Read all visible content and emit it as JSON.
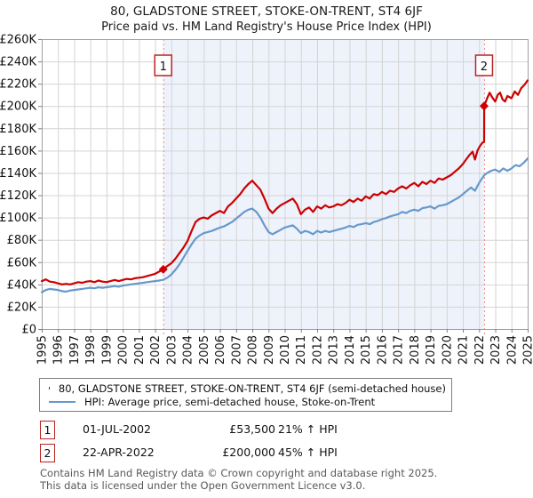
{
  "title": {
    "line1": "80, GLADSTONE STREET, STOKE-ON-TRENT, ST4 6JF",
    "line2": "Price paid vs. HM Land Registry's House Price Index (HPI)"
  },
  "legend": {
    "items": [
      {
        "label": "80, GLADSTONE STREET, STOKE-ON-TRENT, ST4 6JF (semi-detached house)",
        "color": "#cc0000"
      },
      {
        "label": "HPI: Average price, semi-detached house, Stoke-on-Trent",
        "color": "#6699cc"
      }
    ]
  },
  "annotations": [
    {
      "num": "1",
      "date": "01-JUL-2002",
      "price": "£53,500",
      "pct": "21% ↑ HPI"
    },
    {
      "num": "2",
      "date": "22-APR-2022",
      "price": "£200,000",
      "pct": "45% ↑ HPI"
    }
  ],
  "footer": {
    "line1": "Contains HM Land Registry data © Crown copyright and database right 2025.",
    "line2": "This data is licensed under the Open Government Licence v3.0."
  },
  "chart_data": {
    "type": "line",
    "title": "80, GLADSTONE STREET, STOKE-ON-TRENT, ST4 6JF — Price paid vs. HPI",
    "xlim": [
      1995,
      2025
    ],
    "ylim": [
      0,
      260000
    ],
    "grid": true,
    "colors": {
      "grid": "#d4d4d4",
      "border": "#a0a0a0",
      "shade": "#eef2fb",
      "dashed_line": "#ee8888",
      "marker_box_border": "#bb2222",
      "series_property": "#cc0000",
      "series_hpi": "#6699cc"
    },
    "y_ticks": [
      {
        "label": "£0",
        "value": 0
      },
      {
        "label": "£20K",
        "value": 20000
      },
      {
        "label": "£40K",
        "value": 40000
      },
      {
        "label": "£60K",
        "value": 60000
      },
      {
        "label": "£80K",
        "value": 80000
      },
      {
        "label": "£100K",
        "value": 100000
      },
      {
        "label": "£120K",
        "value": 120000
      },
      {
        "label": "£140K",
        "value": 140000
      },
      {
        "label": "£160K",
        "value": 160000
      },
      {
        "label": "£180K",
        "value": 180000
      },
      {
        "label": "£200K",
        "value": 200000
      },
      {
        "label": "£220K",
        "value": 220000
      },
      {
        "label": "£240K",
        "value": 240000
      },
      {
        "label": "£260K",
        "value": 260000
      }
    ],
    "x_ticks": [
      1995,
      1996,
      1997,
      1998,
      1999,
      2000,
      2001,
      2002,
      2003,
      2004,
      2005,
      2006,
      2007,
      2008,
      2009,
      2010,
      2011,
      2012,
      2013,
      2014,
      2015,
      2016,
      2017,
      2018,
      2019,
      2020,
      2021,
      2022,
      2023,
      2024,
      2025
    ],
    "shaded_region": {
      "from": 2002.5,
      "to": 2022.31
    },
    "markers": [
      {
        "label": "1",
        "x": 2002.5,
        "value": 53500
      },
      {
        "label": "2",
        "x": 2022.31,
        "value": 200000
      }
    ],
    "series": [
      {
        "name": "80, GLADSTONE STREET, STOKE-ON-TRENT, ST4 6JF (semi-detached house)",
        "color": "#cc0000",
        "width": 2.2,
        "points": [
          [
            1995.0,
            43000
          ],
          [
            1995.25,
            44500
          ],
          [
            1995.5,
            42500
          ],
          [
            1995.75,
            42000
          ],
          [
            1996.0,
            41000
          ],
          [
            1996.25,
            40000
          ],
          [
            1996.5,
            40500
          ],
          [
            1996.75,
            40000
          ],
          [
            1997.0,
            41000
          ],
          [
            1997.25,
            42000
          ],
          [
            1997.5,
            41500
          ],
          [
            1997.75,
            42500
          ],
          [
            1998.0,
            43000
          ],
          [
            1998.25,
            42000
          ],
          [
            1998.5,
            43500
          ],
          [
            1998.75,
            42500
          ],
          [
            1999.0,
            42000
          ],
          [
            1999.25,
            43000
          ],
          [
            1999.5,
            44000
          ],
          [
            1999.75,
            43000
          ],
          [
            2000.0,
            44000
          ],
          [
            2000.25,
            45000
          ],
          [
            2000.5,
            44500
          ],
          [
            2000.75,
            45500
          ],
          [
            2001.0,
            46000
          ],
          [
            2001.25,
            46500
          ],
          [
            2001.5,
            47500
          ],
          [
            2001.75,
            48500
          ],
          [
            2002.0,
            49500
          ],
          [
            2002.25,
            51500
          ],
          [
            2002.5,
            53500
          ],
          [
            2002.75,
            56500
          ],
          [
            2003.0,
            59000
          ],
          [
            2003.25,
            63000
          ],
          [
            2003.5,
            68000
          ],
          [
            2003.75,
            73000
          ],
          [
            2004.0,
            79000
          ],
          [
            2004.25,
            88000
          ],
          [
            2004.5,
            96000
          ],
          [
            2004.75,
            99000
          ],
          [
            2005.0,
            100000
          ],
          [
            2005.25,
            99000
          ],
          [
            2005.5,
            102000
          ],
          [
            2005.75,
            104000
          ],
          [
            2006.0,
            106000
          ],
          [
            2006.25,
            104000
          ],
          [
            2006.5,
            110000
          ],
          [
            2006.75,
            113000
          ],
          [
            2007.0,
            117000
          ],
          [
            2007.25,
            121000
          ],
          [
            2007.5,
            126000
          ],
          [
            2007.75,
            130000
          ],
          [
            2008.0,
            133000
          ],
          [
            2008.25,
            129000
          ],
          [
            2008.5,
            125000
          ],
          [
            2008.75,
            117000
          ],
          [
            2009.0,
            108000
          ],
          [
            2009.25,
            104000
          ],
          [
            2009.5,
            108000
          ],
          [
            2009.75,
            111000
          ],
          [
            2010.0,
            113000
          ],
          [
            2010.25,
            115000
          ],
          [
            2010.5,
            117000
          ],
          [
            2010.75,
            112000
          ],
          [
            2011.0,
            103000
          ],
          [
            2011.25,
            107000
          ],
          [
            2011.5,
            109000
          ],
          [
            2011.75,
            105000
          ],
          [
            2012.0,
            110000
          ],
          [
            2012.25,
            108000
          ],
          [
            2012.5,
            111000
          ],
          [
            2012.75,
            109000
          ],
          [
            2013.0,
            110000
          ],
          [
            2013.25,
            112000
          ],
          [
            2013.5,
            111000
          ],
          [
            2013.75,
            113000
          ],
          [
            2014.0,
            116000
          ],
          [
            2014.25,
            114000
          ],
          [
            2014.5,
            117000
          ],
          [
            2014.75,
            115000
          ],
          [
            2015.0,
            119000
          ],
          [
            2015.25,
            117000
          ],
          [
            2015.5,
            121000
          ],
          [
            2015.75,
            120000
          ],
          [
            2016.0,
            123000
          ],
          [
            2016.25,
            121000
          ],
          [
            2016.5,
            124000
          ],
          [
            2016.75,
            123000
          ],
          [
            2017.0,
            126000
          ],
          [
            2017.25,
            128000
          ],
          [
            2017.5,
            126000
          ],
          [
            2017.75,
            129000
          ],
          [
            2018.0,
            131000
          ],
          [
            2018.25,
            128000
          ],
          [
            2018.5,
            132000
          ],
          [
            2018.75,
            130000
          ],
          [
            2019.0,
            133000
          ],
          [
            2019.25,
            131000
          ],
          [
            2019.5,
            135000
          ],
          [
            2019.75,
            134000
          ],
          [
            2020.0,
            136000
          ],
          [
            2020.25,
            138000
          ],
          [
            2020.5,
            141000
          ],
          [
            2020.75,
            144000
          ],
          [
            2021.0,
            148000
          ],
          [
            2021.2,
            152000
          ],
          [
            2021.4,
            156000
          ],
          [
            2021.6,
            159000
          ],
          [
            2021.75,
            152000
          ],
          [
            2021.9,
            160000
          ],
          [
            2022.05,
            164000
          ],
          [
            2022.2,
            167000
          ],
          [
            2022.31,
            168000
          ],
          [
            2022.32,
            200000
          ],
          [
            2022.5,
            207000
          ],
          [
            2022.65,
            212000
          ],
          [
            2022.8,
            208000
          ],
          [
            2023.0,
            204000
          ],
          [
            2023.15,
            210000
          ],
          [
            2023.3,
            212000
          ],
          [
            2023.45,
            206000
          ],
          [
            2023.6,
            204000
          ],
          [
            2023.75,
            209000
          ],
          [
            2024.0,
            207000
          ],
          [
            2024.2,
            213000
          ],
          [
            2024.4,
            210000
          ],
          [
            2024.6,
            216000
          ],
          [
            2024.8,
            219000
          ],
          [
            2025.0,
            223000
          ]
        ]
      },
      {
        "name": "HPI: Average price, semi-detached house, Stoke-on-Trent",
        "color": "#6699cc",
        "width": 2.2,
        "points": [
          [
            1995.0,
            33000
          ],
          [
            1995.25,
            35000
          ],
          [
            1995.5,
            36000
          ],
          [
            1995.75,
            35500
          ],
          [
            1996.0,
            35000
          ],
          [
            1996.25,
            34000
          ],
          [
            1996.5,
            33500
          ],
          [
            1996.75,
            34500
          ],
          [
            1997.0,
            35000
          ],
          [
            1997.25,
            35500
          ],
          [
            1997.5,
            36000
          ],
          [
            1997.75,
            36500
          ],
          [
            1998.0,
            37000
          ],
          [
            1998.25,
            36500
          ],
          [
            1998.5,
            37500
          ],
          [
            1998.75,
            37000
          ],
          [
            1999.0,
            37500
          ],
          [
            1999.25,
            38000
          ],
          [
            1999.5,
            38500
          ],
          [
            1999.75,
            38000
          ],
          [
            2000.0,
            39000
          ],
          [
            2000.25,
            39500
          ],
          [
            2000.5,
            40000
          ],
          [
            2000.75,
            40500
          ],
          [
            2001.0,
            41000
          ],
          [
            2001.25,
            41500
          ],
          [
            2001.5,
            42000
          ],
          [
            2001.75,
            42500
          ],
          [
            2002.0,
            43000
          ],
          [
            2002.25,
            43500
          ],
          [
            2002.5,
            44200
          ],
          [
            2002.75,
            46000
          ],
          [
            2003.0,
            49000
          ],
          [
            2003.25,
            53000
          ],
          [
            2003.5,
            58000
          ],
          [
            2003.75,
            64000
          ],
          [
            2004.0,
            70000
          ],
          [
            2004.25,
            76000
          ],
          [
            2004.5,
            81000
          ],
          [
            2004.75,
            84000
          ],
          [
            2005.0,
            86000
          ],
          [
            2005.25,
            87000
          ],
          [
            2005.5,
            88000
          ],
          [
            2005.75,
            89500
          ],
          [
            2006.0,
            91000
          ],
          [
            2006.25,
            92000
          ],
          [
            2006.5,
            94000
          ],
          [
            2006.75,
            96000
          ],
          [
            2007.0,
            99000
          ],
          [
            2007.25,
            102000
          ],
          [
            2007.5,
            105000
          ],
          [
            2007.75,
            107000
          ],
          [
            2008.0,
            108000
          ],
          [
            2008.25,
            105000
          ],
          [
            2008.5,
            100000
          ],
          [
            2008.75,
            93000
          ],
          [
            2009.0,
            87000
          ],
          [
            2009.25,
            85000
          ],
          [
            2009.5,
            87000
          ],
          [
            2009.75,
            89000
          ],
          [
            2010.0,
            91000
          ],
          [
            2010.25,
            92000
          ],
          [
            2010.5,
            93000
          ],
          [
            2010.75,
            90000
          ],
          [
            2011.0,
            86000
          ],
          [
            2011.25,
            88000
          ],
          [
            2011.5,
            87000
          ],
          [
            2011.75,
            85000
          ],
          [
            2012.0,
            88000
          ],
          [
            2012.25,
            86500
          ],
          [
            2012.5,
            88000
          ],
          [
            2012.75,
            87000
          ],
          [
            2013.0,
            88000
          ],
          [
            2013.25,
            89000
          ],
          [
            2013.5,
            90000
          ],
          [
            2013.75,
            91000
          ],
          [
            2014.0,
            92500
          ],
          [
            2014.25,
            91500
          ],
          [
            2014.5,
            93500
          ],
          [
            2014.75,
            94000
          ],
          [
            2015.0,
            95000
          ],
          [
            2015.25,
            94000
          ],
          [
            2015.5,
            96000
          ],
          [
            2015.75,
            97000
          ],
          [
            2016.0,
            98500
          ],
          [
            2016.25,
            99500
          ],
          [
            2016.5,
            101000
          ],
          [
            2016.75,
            102000
          ],
          [
            2017.0,
            103000
          ],
          [
            2017.25,
            105000
          ],
          [
            2017.5,
            104000
          ],
          [
            2017.75,
            106000
          ],
          [
            2018.0,
            107000
          ],
          [
            2018.25,
            106000
          ],
          [
            2018.5,
            108500
          ],
          [
            2018.75,
            109000
          ],
          [
            2019.0,
            110000
          ],
          [
            2019.25,
            108000
          ],
          [
            2019.5,
            110500
          ],
          [
            2019.75,
            111000
          ],
          [
            2020.0,
            112000
          ],
          [
            2020.25,
            114000
          ],
          [
            2020.5,
            116000
          ],
          [
            2020.75,
            118000
          ],
          [
            2021.0,
            121000
          ],
          [
            2021.25,
            124000
          ],
          [
            2021.5,
            127000
          ],
          [
            2021.75,
            124000
          ],
          [
            2022.0,
            131000
          ],
          [
            2022.31,
            137900
          ],
          [
            2022.5,
            140000
          ],
          [
            2022.75,
            142000
          ],
          [
            2023.0,
            143000
          ],
          [
            2023.25,
            141000
          ],
          [
            2023.5,
            144000
          ],
          [
            2023.75,
            142000
          ],
          [
            2024.0,
            144000
          ],
          [
            2024.25,
            147000
          ],
          [
            2024.5,
            146000
          ],
          [
            2024.75,
            149000
          ],
          [
            2025.0,
            153000
          ]
        ]
      }
    ]
  }
}
